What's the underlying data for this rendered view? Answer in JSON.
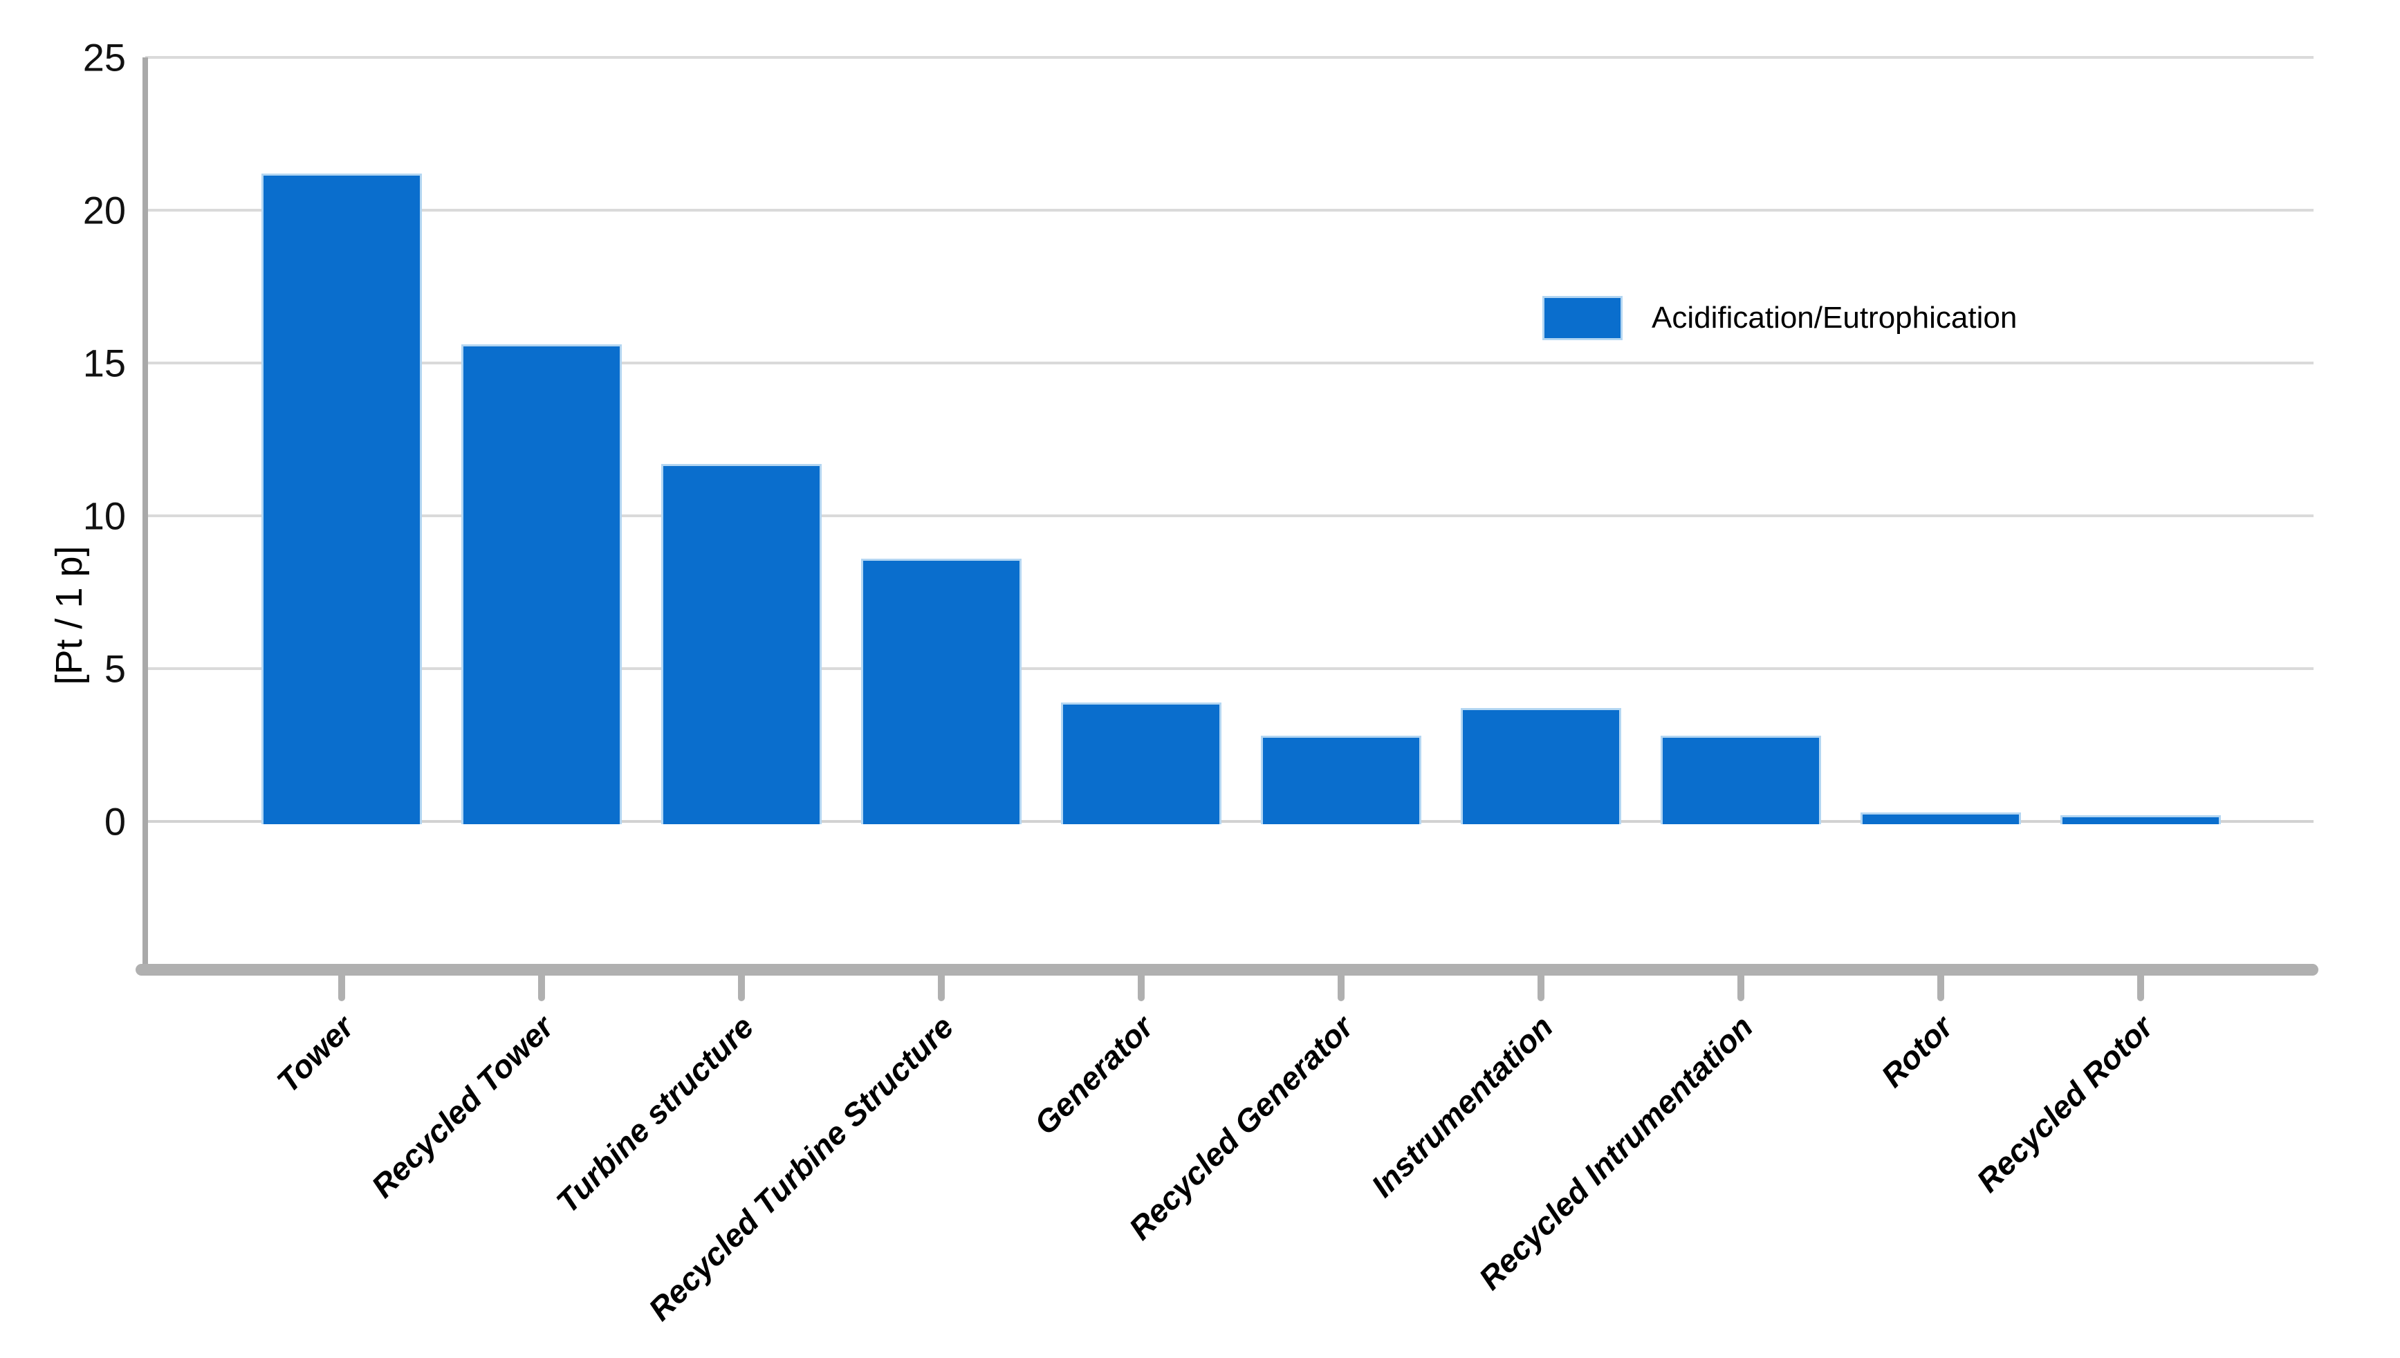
{
  "chart_data": {
    "type": "bar",
    "title": "",
    "categories": [
      "Tower",
      "Recycled Tower",
      "Turbine structure",
      "Recycled Turbine Structure",
      "Generator",
      "Recycled Generator",
      "Instrumentation",
      "Recycled Intrumentation",
      "Rotor",
      "Recycled Rotor"
    ],
    "values": [
      21.2,
      15.6,
      11.7,
      8.6,
      3.9,
      2.8,
      3.7,
      2.8,
      0.3,
      0.2
    ],
    "series": [
      {
        "name": "Acidification/Eutrophication",
        "values": [
          21.2,
          15.6,
          11.7,
          8.6,
          3.9,
          2.8,
          3.7,
          2.8,
          0.3,
          0.2
        ]
      }
    ],
    "xlabel": "",
    "ylabel": "[Pt / 1 p]",
    "yticks": [
      0,
      5,
      10,
      15,
      20,
      25
    ],
    "ytick_labels": [
      "0",
      "5",
      "10",
      "15",
      "20",
      "25"
    ],
    "ylim": [
      -4.85,
      25
    ],
    "grid": true,
    "legend_position": "upper right",
    "colors": {
      "bar_fill": "#0a6ecd",
      "bar_edge": "#b3d6f2",
      "gridline": "#dadada",
      "zero_line": "#d2d2d2",
      "axis_line": "#a9a9a9",
      "x_axis_line": "#b0b0b0",
      "tick_mark": "#b0b0b0",
      "text": "#000000"
    }
  },
  "legend": {
    "label": "Acidification/Eutrophication",
    "swatch_color": "#0a6ecd"
  },
  "y_axis": {
    "title": "[Pt / 1 p]",
    "tick_labels": [
      "0",
      "5",
      "10",
      "15",
      "20",
      "25"
    ]
  },
  "x_axis": {
    "labels": [
      "Tower",
      "Recycled Tower",
      "Turbine structure",
      "Recycled Turbine Structure",
      "Generator",
      "Recycled Generator",
      "Instrumentation",
      "Recycled Intrumentation",
      "Rotor",
      "Recycled Rotor"
    ]
  }
}
